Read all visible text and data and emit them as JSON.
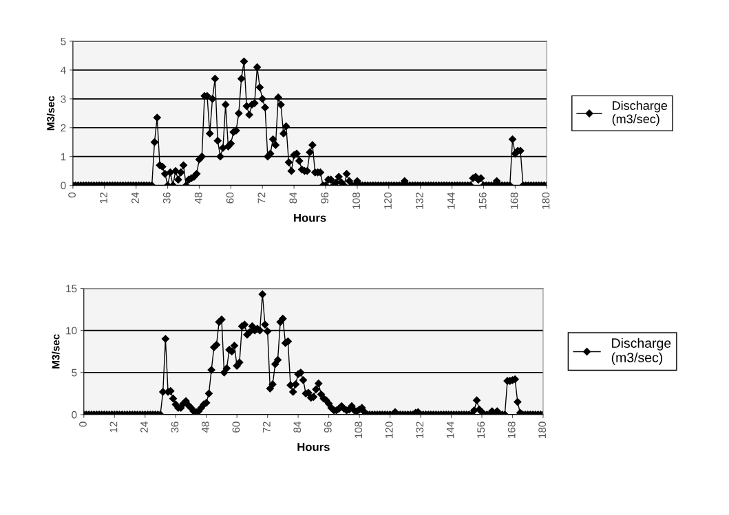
{
  "chart_data": [
    {
      "type": "line",
      "xlabel": "Hours",
      "ylabel": "M3/sec",
      "xlim": [
        0,
        180
      ],
      "xticks": [
        0,
        12,
        24,
        36,
        48,
        60,
        72,
        84,
        96,
        108,
        120,
        132,
        144,
        156,
        168,
        180
      ],
      "ylim": [
        0,
        5
      ],
      "yticks": [
        0,
        1,
        2,
        3,
        4,
        5
      ],
      "grid": "y",
      "legend": "right",
      "marker": "diamond",
      "line_style": "solid",
      "x": [
        0,
        1,
        2,
        3,
        4,
        5,
        6,
        7,
        8,
        9,
        10,
        11,
        12,
        13,
        14,
        15,
        16,
        17,
        18,
        19,
        20,
        21,
        22,
        23,
        24,
        25,
        26,
        27,
        28,
        29,
        30,
        31,
        32,
        33,
        34,
        35,
        36,
        37,
        38,
        39,
        40,
        41,
        42,
        43,
        44,
        45,
        46,
        47,
        48,
        49,
        50,
        51,
        52,
        53,
        54,
        55,
        56,
        57,
        58,
        59,
        60,
        61,
        62,
        63,
        64,
        65,
        66,
        67,
        68,
        69,
        70,
        71,
        72,
        73,
        74,
        75,
        76,
        77,
        78,
        79,
        80,
        81,
        82,
        83,
        84,
        85,
        86,
        87,
        88,
        89,
        90,
        91,
        92,
        93,
        94,
        95,
        96,
        97,
        98,
        99,
        100,
        101,
        102,
        103,
        104,
        105,
        106,
        107,
        108,
        109,
        110,
        111,
        112,
        113,
        114,
        115,
        116,
        117,
        118,
        119,
        120,
        121,
        122,
        123,
        124,
        125,
        126,
        127,
        128,
        129,
        130,
        131,
        132,
        133,
        134,
        135,
        136,
        137,
        138,
        139,
        140,
        141,
        142,
        143,
        144,
        145,
        146,
        147,
        148,
        149,
        150,
        151,
        152,
        153,
        154,
        155,
        156,
        157,
        158,
        159,
        160,
        161,
        162,
        163,
        164,
        165,
        166,
        167,
        168,
        169,
        170,
        171,
        172,
        173,
        174,
        175,
        176,
        177,
        178,
        179,
        180
      ],
      "series": [
        {
          "name": "Discharge\n(m3/sec)",
          "color": "#000000",
          "values": [
            0,
            0,
            0,
            0,
            0,
            0,
            0,
            0,
            0,
            0,
            0,
            0,
            0,
            0,
            0,
            0,
            0,
            0,
            0,
            0,
            0,
            0,
            0,
            0,
            0,
            0,
            0,
            0,
            0,
            0,
            0,
            1.5,
            2.35,
            0.7,
            0.65,
            0.4,
            0,
            0.45,
            0,
            0.5,
            0.2,
            0.45,
            0.7,
            0,
            0.2,
            0.25,
            0.3,
            0.4,
            0.9,
            1.0,
            3.1,
            3.1,
            1.8,
            3.0,
            3.7,
            1.55,
            1.0,
            1.3,
            2.8,
            1.35,
            1.45,
            1.85,
            1.9,
            2.5,
            3.7,
            4.3,
            2.75,
            2.45,
            2.8,
            2.85,
            4.1,
            3.4,
            3.0,
            2.7,
            1.0,
            1.1,
            1.6,
            1.4,
            3.05,
            2.8,
            1.8,
            2.05,
            0.8,
            0.5,
            1.05,
            1.1,
            0.85,
            0.55,
            0.5,
            0.5,
            1.15,
            1.4,
            0.45,
            0.45,
            0.45,
            0,
            0,
            0.2,
            0.2,
            0,
            0.1,
            0.3,
            0.1,
            0,
            0.4,
            0.15,
            0,
            0,
            0.15,
            0,
            0,
            0,
            0,
            0,
            0,
            0,
            0,
            0,
            0,
            0,
            0,
            0,
            0,
            0,
            0,
            0,
            0.15,
            0,
            0,
            0,
            0,
            0,
            0,
            0,
            0,
            0,
            0,
            0,
            0,
            0,
            0,
            0,
            0,
            0,
            0,
            0,
            0,
            0,
            0,
            0,
            0,
            0,
            0.25,
            0.3,
            0.2,
            0.25,
            0,
            0,
            0,
            0,
            0,
            0.15,
            0,
            0,
            0,
            0,
            0,
            1.6,
            1.1,
            1.2,
            1.2,
            0,
            0,
            0,
            0,
            0,
            0,
            0,
            0,
            0,
            0
          ]
        }
      ]
    },
    {
      "type": "line",
      "xlabel": "Hours",
      "ylabel": "M3/sec",
      "xlim": [
        0,
        180
      ],
      "xticks": [
        0,
        12,
        24,
        36,
        48,
        60,
        72,
        84,
        96,
        108,
        120,
        132,
        144,
        156,
        168,
        180
      ],
      "ylim": [
        0,
        15
      ],
      "yticks": [
        0,
        5,
        10,
        15
      ],
      "grid": "y",
      "legend": "right",
      "marker": "diamond",
      "line_style": "solid",
      "x": [
        0,
        1,
        2,
        3,
        4,
        5,
        6,
        7,
        8,
        9,
        10,
        11,
        12,
        13,
        14,
        15,
        16,
        17,
        18,
        19,
        20,
        21,
        22,
        23,
        24,
        25,
        26,
        27,
        28,
        29,
        30,
        31,
        32,
        33,
        34,
        35,
        36,
        37,
        38,
        39,
        40,
        41,
        42,
        43,
        44,
        45,
        46,
        47,
        48,
        49,
        50,
        51,
        52,
        53,
        54,
        55,
        56,
        57,
        58,
        59,
        60,
        61,
        62,
        63,
        64,
        65,
        66,
        67,
        68,
        69,
        70,
        71,
        72,
        73,
        74,
        75,
        76,
        77,
        78,
        79,
        80,
        81,
        82,
        83,
        84,
        85,
        86,
        87,
        88,
        89,
        90,
        91,
        92,
        93,
        94,
        95,
        96,
        97,
        98,
        99,
        100,
        101,
        102,
        103,
        104,
        105,
        106,
        107,
        108,
        109,
        110,
        111,
        112,
        113,
        114,
        115,
        116,
        117,
        118,
        119,
        120,
        121,
        122,
        123,
        124,
        125,
        126,
        127,
        128,
        129,
        130,
        131,
        132,
        133,
        134,
        135,
        136,
        137,
        138,
        139,
        140,
        141,
        142,
        143,
        144,
        145,
        146,
        147,
        148,
        149,
        150,
        151,
        152,
        153,
        154,
        155,
        156,
        157,
        158,
        159,
        160,
        161,
        162,
        163,
        164,
        165,
        166,
        167,
        168,
        169,
        170,
        171,
        172,
        173,
        174,
        175,
        176,
        177,
        178,
        179,
        180
      ],
      "series": [
        {
          "name": "Discharge\n(m3/sec)",
          "color": "#000000",
          "values": [
            0,
            0,
            0,
            0,
            0,
            0,
            0,
            0,
            0,
            0,
            0,
            0,
            0,
            0,
            0,
            0,
            0,
            0,
            0,
            0,
            0,
            0,
            0,
            0,
            0,
            0,
            0,
            0,
            0,
            0,
            0,
            2.7,
            9.0,
            2.7,
            2.8,
            1.9,
            1.2,
            0.8,
            0.8,
            1.3,
            1.6,
            1.1,
            0.8,
            0.4,
            0.3,
            0.4,
            0.8,
            1.2,
            1.4,
            2.5,
            5.3,
            8.0,
            8.3,
            11.0,
            11.3,
            5.0,
            5.5,
            7.7,
            7.5,
            8.2,
            5.8,
            6.2,
            10.5,
            10.7,
            9.5,
            9.8,
            10.5,
            10.0,
            10.2,
            10.0,
            14.3,
            10.7,
            9.9,
            3.1,
            3.6,
            6.0,
            6.5,
            11.0,
            11.4,
            8.5,
            8.7,
            3.5,
            2.7,
            3.6,
            4.8,
            5.0,
            4.1,
            2.5,
            2.6,
            2.0,
            2.1,
            3.0,
            3.7,
            2.4,
            1.9,
            1.7,
            1.3,
            0.8,
            0.5,
            0.5,
            0.7,
            1.0,
            0.7,
            0.5,
            0.6,
            1.0,
            0.5,
            0.4,
            0.6,
            0.8,
            0.3,
            0,
            0,
            0,
            0,
            0,
            0,
            0,
            0,
            0,
            0,
            0,
            0.3,
            0,
            0,
            0,
            0,
            0,
            0,
            0,
            0.2,
            0.3,
            0,
            0,
            0,
            0,
            0,
            0,
            0,
            0,
            0,
            0,
            0,
            0,
            0,
            0,
            0,
            0,
            0,
            0,
            0,
            0,
            0,
            0.5,
            1.7,
            0.6,
            0.3,
            0,
            0,
            0,
            0.4,
            0,
            0.4,
            0,
            0,
            0,
            4.0,
            4.0,
            4.1,
            4.2,
            1.5,
            0.2,
            0,
            0,
            0,
            0,
            0,
            0,
            0,
            0,
            0
          ]
        }
      ]
    }
  ]
}
